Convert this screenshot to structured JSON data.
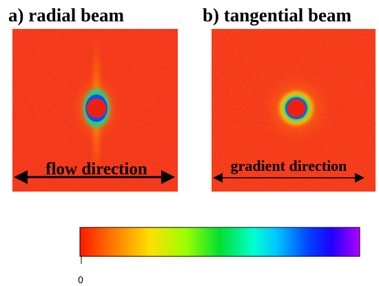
{
  "panels": [
    {
      "title": "a) radial beam",
      "direction": "flow direction"
    },
    {
      "title": "b) tangential beam",
      "direction": "gradient direction"
    }
  ],
  "colorbar": {
    "tick": "0"
  }
}
